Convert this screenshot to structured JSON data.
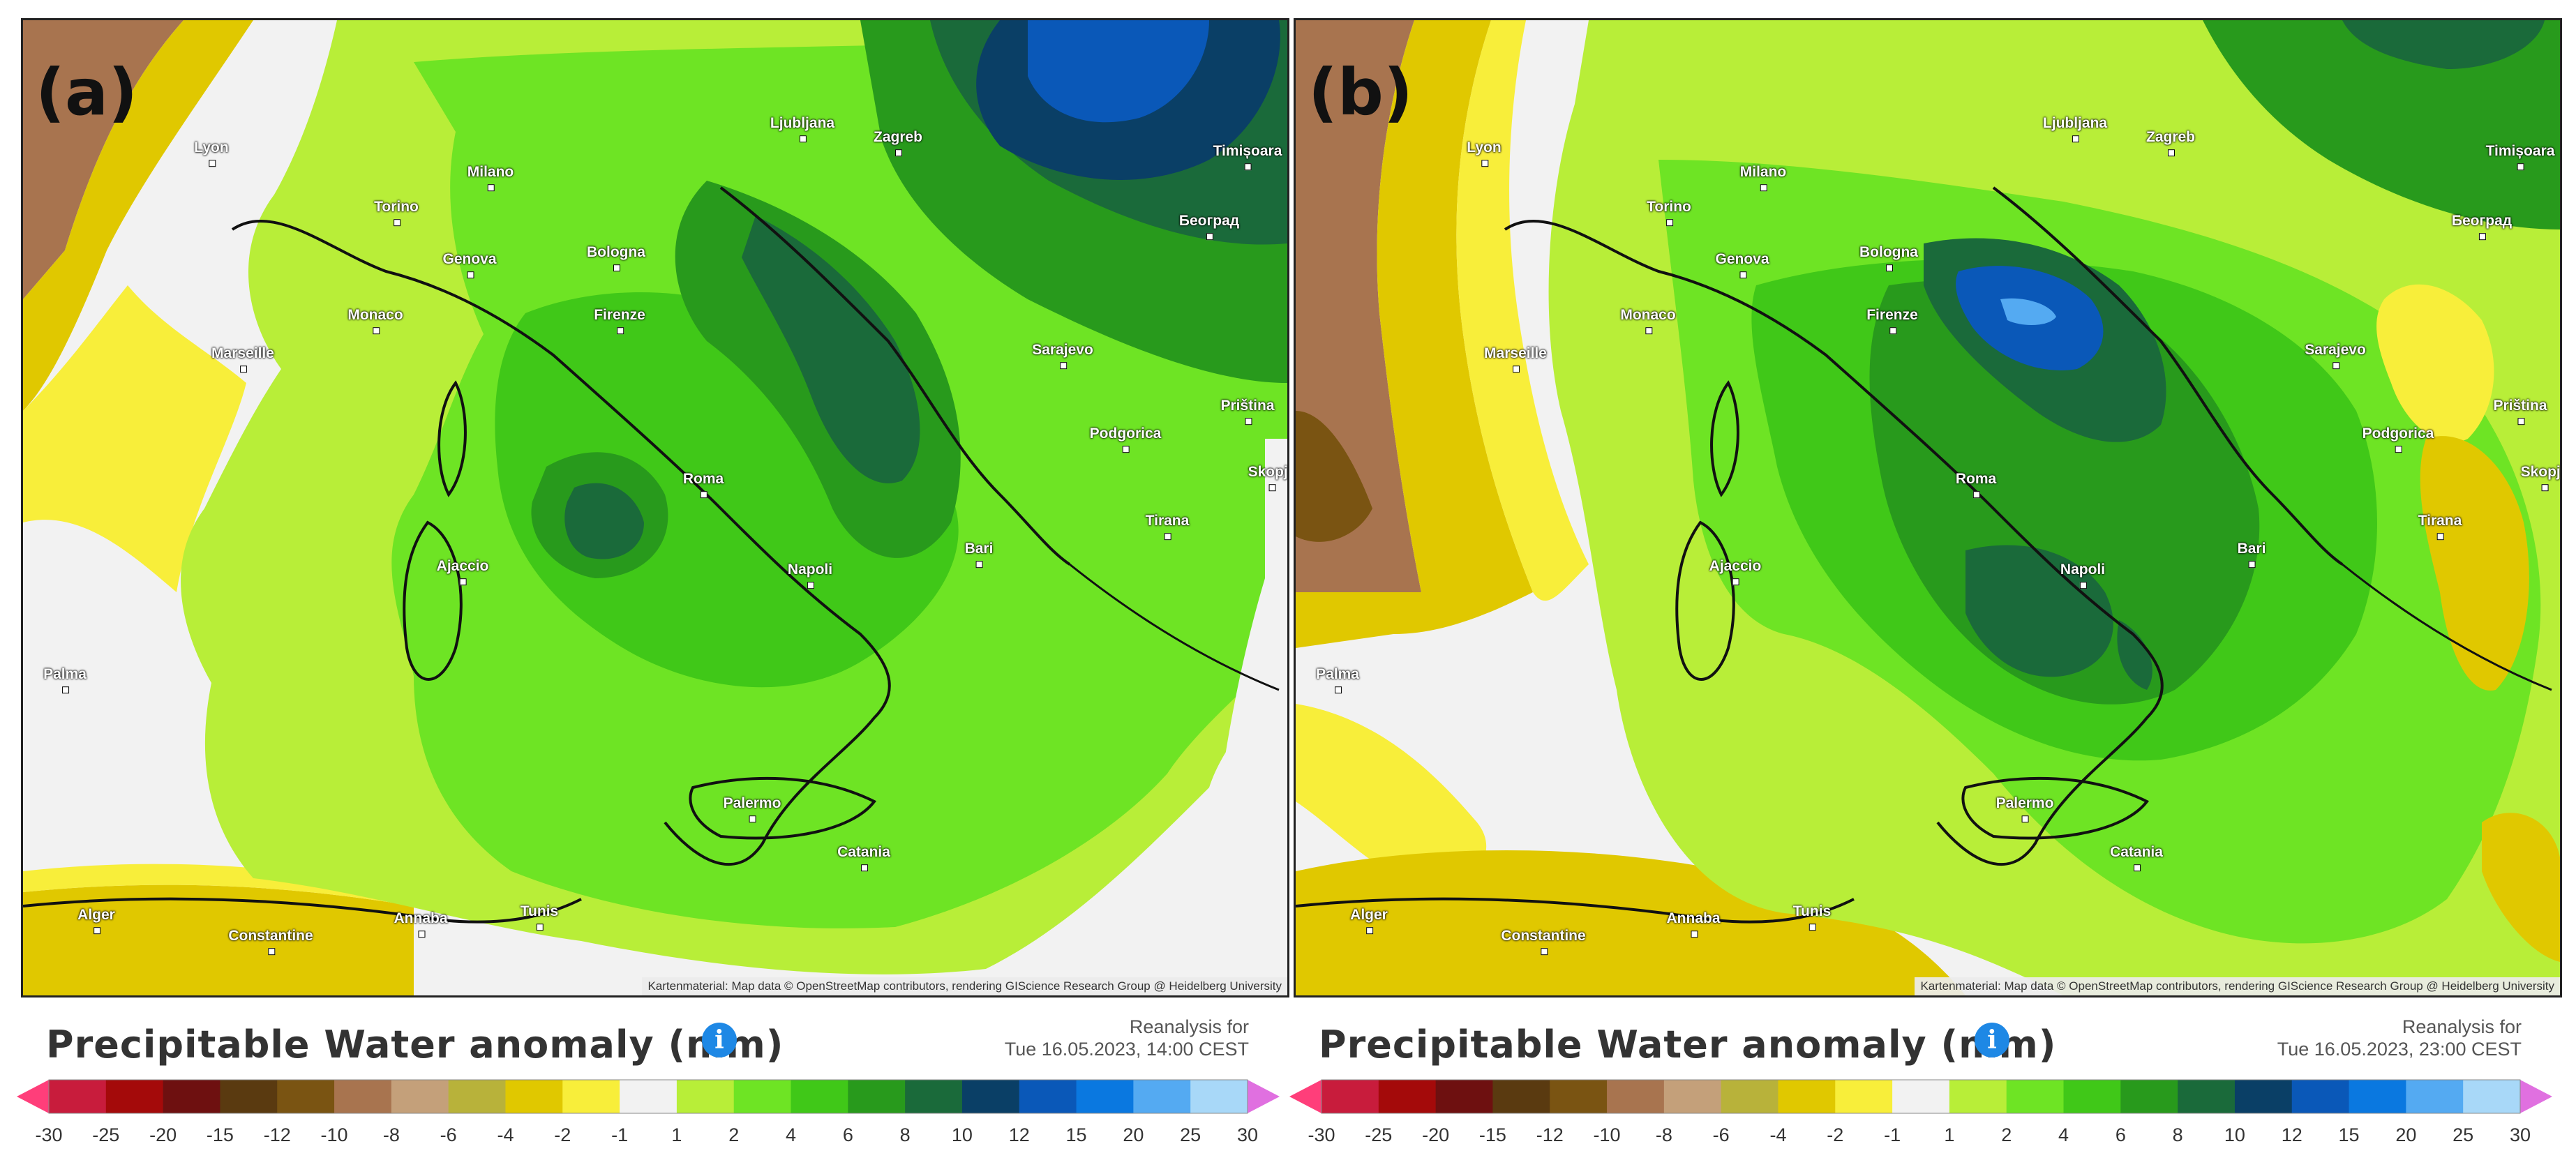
{
  "colors": {
    "scale": [
      "#ff3e7a",
      "#c81c3c",
      "#a40a0a",
      "#6e1010",
      "#5a3a10",
      "#7a5412",
      "#a8744f",
      "#c4a07a",
      "#b8b23a",
      "#e0c800",
      "#f8ee3a",
      "#f2f2f2",
      "#b8ee38",
      "#6ee424",
      "#40c818",
      "#289a1c",
      "#1a6a3a",
      "#0a3f66",
      "#0a58b8",
      "#0a78e0",
      "#54aaf2",
      "#a8d8f8",
      "#e070e0"
    ],
    "anomaly_levels": {
      "neg8": "#a8744f",
      "neg4": "#e0c800",
      "neg2": "#f8ee3a",
      "zero": "#f2f2f2",
      "p1": "#b8ee38",
      "p2": "#6ee424",
      "p4": "#40c818",
      "p6": "#289a1c",
      "p8": "#1a6a3a",
      "p10": "#0a3f66",
      "p12": "#0a58b8"
    }
  },
  "info_icon": "info-circle-icon",
  "panels": [
    {
      "label": "(a)",
      "attribution": "Kartenmaterial: Map data © OpenStreetMap contributors, rendering GIScience Research Group @ Heidelberg University",
      "cities": [
        "Ljubljana",
        "Zagreb",
        "Timișoara",
        "Lyon",
        "Milano",
        "Torino",
        "Genova",
        "Bologna",
        "Firenze",
        "Monaco",
        "Marseille",
        "Sarajevo",
        "Београд",
        "Priština",
        "Podgorica",
        "Tirana",
        "Skopje",
        "Roma",
        "Bari",
        "Napoli",
        "Palermo",
        "Catania",
        "Alger",
        "Constantine",
        "Tunis",
        "Annaba",
        "Ajaccio",
        "Palma"
      ],
      "legend_title": "Precipitable Water anomaly (mm)",
      "reanalysis_line1": "Reanalysis for",
      "reanalysis_line2": "Tue 16.05.2023, 14:00 CEST",
      "ticks": [
        "-30",
        "-25",
        "-20",
        "-15",
        "-12",
        "-10",
        "-8",
        "-6",
        "-4",
        "-2",
        "-1",
        "1",
        "2",
        "4",
        "6",
        "8",
        "10",
        "12",
        "15",
        "20",
        "25",
        "30"
      ]
    },
    {
      "label": "(b)",
      "attribution": "Kartenmaterial: Map data © OpenStreetMap contributors, rendering GIScience Research Group @ Heidelberg University",
      "cities": [
        "Ljubljana",
        "Zagreb",
        "Timișoara",
        "Lyon",
        "Milano",
        "Torino",
        "Genova",
        "Bologna",
        "Firenze",
        "Monaco",
        "Marseille",
        "Sarajevo",
        "Београд",
        "Priština",
        "Podgorica",
        "Tirana",
        "Skopje",
        "Roma",
        "Bari",
        "Napoli",
        "Palermo",
        "Catania",
        "Alger",
        "Constantine",
        "Tunis",
        "Annaba",
        "Ajaccio",
        "Palma"
      ],
      "legend_title": "Precipitable Water anomaly (mm)",
      "reanalysis_line1": "Reanalysis for",
      "reanalysis_line2": "Tue 16.05.2023, 23:00 CEST",
      "ticks": [
        "-30",
        "-25",
        "-20",
        "-15",
        "-12",
        "-10",
        "-8",
        "-6",
        "-4",
        "-2",
        "-1",
        "1",
        "2",
        "4",
        "6",
        "8",
        "10",
        "12",
        "15",
        "20",
        "25",
        "30"
      ]
    }
  ]
}
